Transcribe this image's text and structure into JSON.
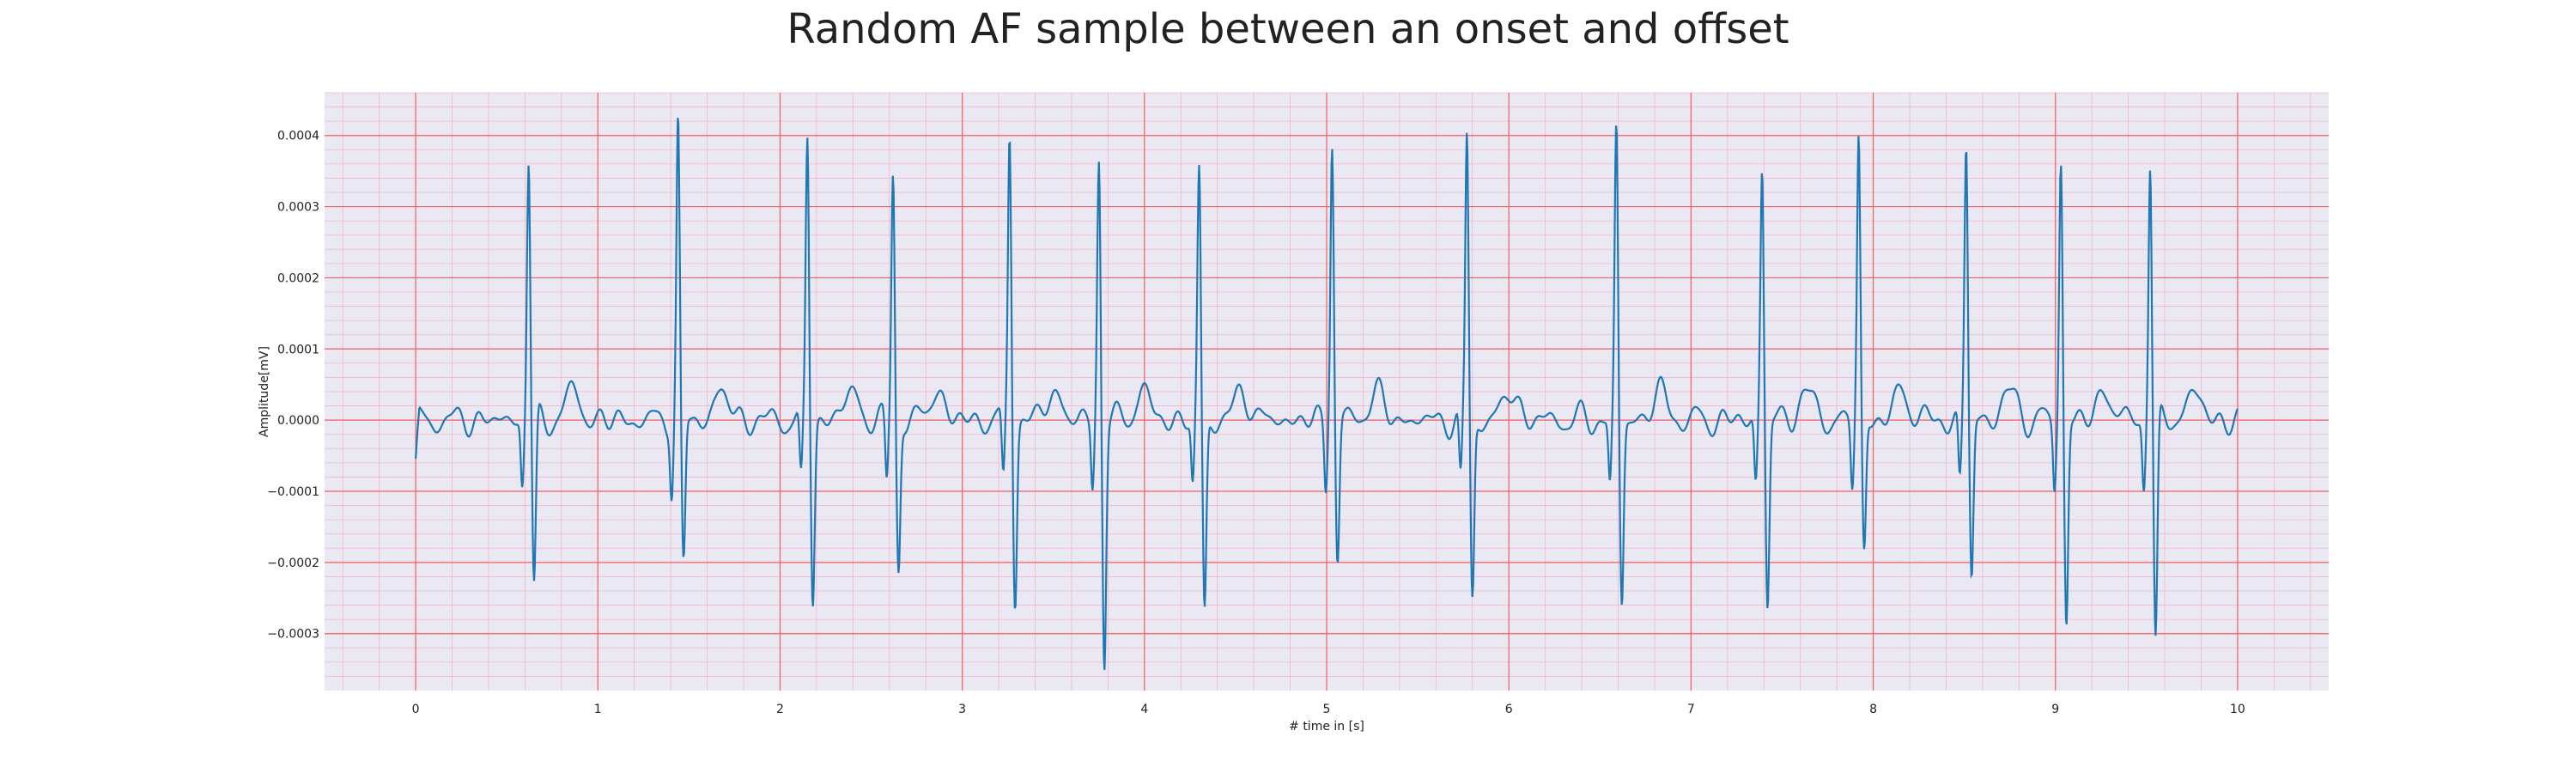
{
  "chart_data": {
    "type": "line",
    "title": "Random AF sample between an onset and offset",
    "xlabel": "# time in [s]",
    "ylabel": "Amplitude[mV]",
    "xlim": [
      -0.5,
      10.5
    ],
    "ylim": [
      -0.00038,
      0.00046
    ],
    "xticks": [
      0,
      1,
      2,
      3,
      4,
      5,
      6,
      7,
      8,
      9,
      10
    ],
    "yticks": [
      -0.0003,
      -0.0002,
      -0.0001,
      0.0,
      0.0001,
      0.0002,
      0.0003,
      0.0004
    ],
    "ytick_labels": [
      "−0.0003",
      "−0.0002",
      "−0.0001",
      "0.0000",
      "0.0001",
      "0.0002",
      "0.0003",
      "0.0004"
    ],
    "grid": "major red, minor pink",
    "colors": {
      "line": "#1f77b4",
      "background": "#eae8f2",
      "major_grid": "#f06060",
      "minor_grid": "#f2b6c6"
    },
    "beats": [
      {
        "t": 0.62,
        "peak": 0.00037,
        "trough": -0.00024
      },
      {
        "t": 1.44,
        "peak": 0.00042,
        "trough": -0.00021
      },
      {
        "t": 2.15,
        "peak": 0.0004,
        "trough": -0.00025
      },
      {
        "t": 2.62,
        "peak": 0.00035,
        "trough": -0.00021
      },
      {
        "t": 3.26,
        "peak": 0.00041,
        "trough": -0.00025
      },
      {
        "t": 3.75,
        "peak": 0.00037,
        "trough": -0.00034
      },
      {
        "t": 4.3,
        "peak": 0.00035,
        "trough": -0.00027
      },
      {
        "t": 5.03,
        "peak": 0.0004,
        "trough": -0.0002
      },
      {
        "t": 5.77,
        "peak": 0.0004,
        "trough": -0.00025
      },
      {
        "t": 6.59,
        "peak": 0.00041,
        "trough": -0.00026
      },
      {
        "t": 7.39,
        "peak": 0.00036,
        "trough": -0.00026
      },
      {
        "t": 7.92,
        "peak": 0.0004,
        "trough": -0.00019
      },
      {
        "t": 8.51,
        "peak": 0.00039,
        "trough": -0.00022
      },
      {
        "t": 9.03,
        "peak": 0.00037,
        "trough": -0.00029
      },
      {
        "t": 9.52,
        "peak": 0.00037,
        "trough": -0.00032
      }
    ]
  }
}
